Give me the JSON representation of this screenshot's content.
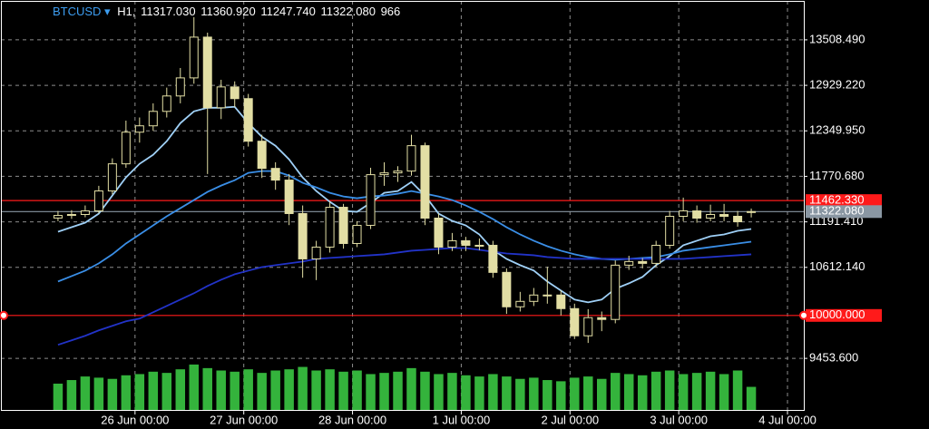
{
  "chart_data": {
    "type": "candlestick",
    "symbol": "BTCUSD ▾",
    "timeframe": "H1,",
    "last_bar": {
      "open": {
        "value": 11317.03,
        "label": "11317.030"
      },
      "high": {
        "value": 11360.92,
        "label": "11360.920"
      },
      "low": {
        "value": 11247.74,
        "label": "11247.740"
      },
      "close": {
        "value": 11322.08,
        "label": "11322.080"
      },
      "volume": 966
    },
    "x": [
      -17,
      -14,
      -11,
      -8,
      -5,
      -2,
      1,
      4,
      7,
      10,
      13,
      16,
      19,
      22,
      25,
      28,
      31,
      34,
      37,
      40,
      43,
      46,
      49,
      52,
      55,
      58,
      61,
      64,
      67,
      70,
      73,
      76,
      79,
      82,
      85,
      88,
      91,
      94,
      97,
      100,
      103,
      106,
      109,
      112,
      115,
      118,
      121,
      124,
      127,
      130,
      133,
      136
    ],
    "open": [
      11240,
      11273,
      11285,
      11331,
      11585,
      11930,
      12333,
      12414,
      12598,
      12794,
      13024,
      13543,
      12644,
      12909,
      12760,
      12218,
      11872,
      11723,
      11297,
      10720,
      10870,
      11377,
      10916,
      11147,
      11792,
      11815,
      11838,
      12161,
      11239,
      10870,
      10951,
      10893,
      10893,
      10548,
      10110,
      10179,
      10260,
      10260,
      10087,
      9741,
      9972,
      9949,
      10640,
      10686,
      10663,
      10893,
      11262,
      11331,
      11239,
      11285,
      11262,
      11317.03
    ],
    "high": [
      11330,
      11340,
      11400,
      11650,
      12000,
      12480,
      12520,
      12700,
      12900,
      13150,
      13796,
      13600,
      13000,
      12980,
      12820,
      12300,
      11950,
      11800,
      11400,
      10950,
      11450,
      11420,
      11200,
      11880,
      11950,
      11900,
      12300,
      12200,
      11300,
      11050,
      11000,
      10980,
      10950,
      10600,
      10300,
      10350,
      10620,
      10320,
      10150,
      10080,
      10050,
      10700,
      10760,
      10730,
      10950,
      11330,
      11500,
      11400,
      11410,
      11420,
      11330,
      11360.92
    ],
    "low": [
      11200,
      11230,
      11250,
      11300,
      11540,
      11880,
      12200,
      12350,
      12520,
      12700,
      12950,
      11800,
      12500,
      12650,
      12150,
      11750,
      11600,
      11150,
      10480,
      10450,
      10800,
      10850,
      10870,
      11100,
      11650,
      11700,
      11780,
      11150,
      10780,
      10820,
      10820,
      10830,
      10480,
      10020,
      10050,
      10120,
      10150,
      10000,
      9700,
      9650,
      9800,
      9900,
      10580,
      10600,
      10620,
      10850,
      11200,
      11180,
      11200,
      11200,
      11130,
      11247.74
    ],
    "close": [
      11273,
      11285,
      11331,
      11585,
      11930,
      12333,
      12414,
      12598,
      12794,
      13024,
      13543,
      12644,
      12909,
      12760,
      12218,
      11872,
      11723,
      11297,
      10720,
      10870,
      11377,
      10916,
      11147,
      11792,
      11815,
      11838,
      12161,
      11239,
      10870,
      10951,
      10893,
      10893,
      10548,
      10110,
      10179,
      10260,
      10260,
      10087,
      9741,
      9972,
      9949,
      10640,
      10686,
      10663,
      10893,
      11262,
      11331,
      11239,
      11285,
      11262,
      11193,
      11322.08
    ],
    "volume": [
      1100,
      1250,
      1400,
      1350,
      1300,
      1450,
      1500,
      1600,
      1550,
      1700,
      1900,
      1750,
      1650,
      1600,
      1700,
      1550,
      1650,
      1700,
      1800,
      1650,
      1700,
      1600,
      1650,
      1500,
      1550,
      1600,
      1750,
      1600,
      1500,
      1550,
      1450,
      1400,
      1500,
      1400,
      1300,
      1350,
      1250,
      1200,
      1350,
      1400,
      1300,
      1550,
      1500,
      1450,
      1600,
      1650,
      1500,
      1550,
      1600,
      1500,
      1650,
      966
    ],
    "candle_color": "#e2dea4",
    "volume_color": "#34b33c",
    "volume_lim": [
      0,
      2200
    ],
    "lines": [
      {
        "color": "#9fd0f7",
        "values": [
          11066,
          11123,
          11181,
          11296,
          11527,
          11757,
          11930,
          12045,
          12218,
          12448,
          12598,
          12644,
          12644,
          12656,
          12448,
          12275,
          12160,
          11987,
          11757,
          11584,
          11446,
          11331,
          11319,
          11434,
          11561,
          11584,
          11699,
          11527,
          11296,
          11204,
          11146,
          11031,
          10835,
          10720,
          10640,
          10571,
          10432,
          10317,
          10202,
          10167,
          10202,
          10340,
          10409,
          10490,
          10640,
          10755,
          10893,
          10951,
          11008,
          11031,
          11077,
          11100
        ]
      },
      {
        "color": "#3a8ee6",
        "values": [
          10432,
          10501,
          10570,
          10663,
          10778,
          10916,
          11031,
          11146,
          11262,
          11365,
          11469,
          11573,
          11653,
          11722,
          11815,
          11838,
          11838,
          11780,
          11688,
          11630,
          11561,
          11515,
          11492,
          11515,
          11527,
          11550,
          11584,
          11550,
          11515,
          11469,
          11400,
          11319,
          11227,
          11123,
          11031,
          10951,
          10881,
          10824,
          10778,
          10743,
          10720,
          10709,
          10720,
          10732,
          10743,
          10778,
          10824,
          10847,
          10870,
          10893,
          10916,
          10939
        ]
      },
      {
        "color": "#2233c8",
        "values": [
          9626,
          9683,
          9741,
          9810,
          9868,
          9925,
          9960,
          10040,
          10121,
          10202,
          10282,
          10375,
          10455,
          10524,
          10570,
          10616,
          10640,
          10663,
          10686,
          10720,
          10732,
          10743,
          10755,
          10766,
          10778,
          10801,
          10824,
          10835,
          10847,
          10858,
          10858,
          10835,
          10812,
          10789,
          10778,
          10766,
          10743,
          10732,
          10720,
          10720,
          10720,
          10720,
          10720,
          10720,
          10720,
          10720,
          10720,
          10732,
          10743,
          10755,
          10766,
          10778
        ]
      }
    ],
    "hlines": [
      {
        "value": 11462.33,
        "label": "11462.330",
        "color": "#ff1a1a",
        "handles": false
      },
      {
        "value": 11322.08,
        "label": "11322.080",
        "color": "#8a97a3",
        "handles": false
      },
      {
        "value": 10000,
        "label": "10000.000",
        "color": "#ff1a1a",
        "handles": true
      }
    ],
    "ylim": [
      8797,
      14004
    ],
    "yticks": [
      {
        "value": 13508.49,
        "label": "13508.490"
      },
      {
        "value": 12929.22,
        "label": "12929.220"
      },
      {
        "value": 12349.95,
        "label": "12349.950"
      },
      {
        "value": 11770.68,
        "label": "11770.680"
      },
      {
        "value": 11191.41,
        "label": "11191.410"
      },
      {
        "value": 10612.14,
        "label": "10612.140"
      },
      {
        "value": 9453.6,
        "label": "9453.600"
      }
    ],
    "xlim": [
      -29.6,
      147.6
    ],
    "xticks": [
      {
        "value": 0,
        "label": "26 Jun 00:00"
      },
      {
        "value": 24,
        "label": "27 Jun 00:00"
      },
      {
        "value": 48,
        "label": "28 Jun 00:00"
      },
      {
        "value": 72,
        "label": "1 Jul 00:00"
      },
      {
        "value": 96,
        "label": "2 Jul 00:00"
      },
      {
        "value": 120,
        "label": "3 Jul 00:00"
      },
      {
        "value": 144,
        "label": "4 Jul 00:00"
      }
    ],
    "grid": true
  }
}
